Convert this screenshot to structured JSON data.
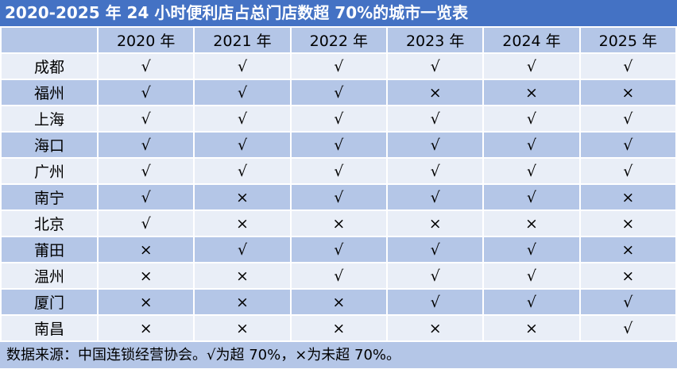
{
  "title": "2020-2025 年 24 小时便利店占总门店数超 70%的城市一览表",
  "columns": [
    "",
    "2020 年",
    "2021 年",
    "2022 年",
    "2023 年",
    "2024 年",
    "2025 年"
  ],
  "symbols": {
    "yes": "√",
    "no": "×"
  },
  "rows": [
    {
      "city": "成都",
      "values": [
        "√",
        "√",
        "√",
        "√",
        "√",
        "√"
      ]
    },
    {
      "city": "福州",
      "values": [
        "√",
        "√",
        "√",
        "×",
        "×",
        "×"
      ]
    },
    {
      "city": "上海",
      "values": [
        "√",
        "√",
        "√",
        "√",
        "√",
        "√"
      ]
    },
    {
      "city": "海口",
      "values": [
        "√",
        "√",
        "√",
        "√",
        "√",
        "√"
      ]
    },
    {
      "city": "广州",
      "values": [
        "√",
        "√",
        "√",
        "√",
        "√",
        "√"
      ]
    },
    {
      "city": "南宁",
      "values": [
        "√",
        "×",
        "√",
        "√",
        "√",
        "×"
      ]
    },
    {
      "city": "北京",
      "values": [
        "√",
        "×",
        "×",
        "×",
        "×",
        "×"
      ]
    },
    {
      "city": "莆田",
      "values": [
        "×",
        "√",
        "√",
        "√",
        "√",
        "×"
      ]
    },
    {
      "city": "温州",
      "values": [
        "×",
        "×",
        "√",
        "√",
        "√",
        "×"
      ]
    },
    {
      "city": "厦门",
      "values": [
        "×",
        "×",
        "×",
        "√",
        "√",
        "√"
      ]
    },
    {
      "city": "南昌",
      "values": [
        "×",
        "×",
        "×",
        "×",
        "×",
        "√"
      ]
    }
  ],
  "footer": "数据来源：中国连锁经营协会。√为超 70%，×为未超 70%。",
  "colors": {
    "title_bg": "#4472C4",
    "dark_row": "#B4C6E7",
    "light_row": "#E9EEF7"
  }
}
